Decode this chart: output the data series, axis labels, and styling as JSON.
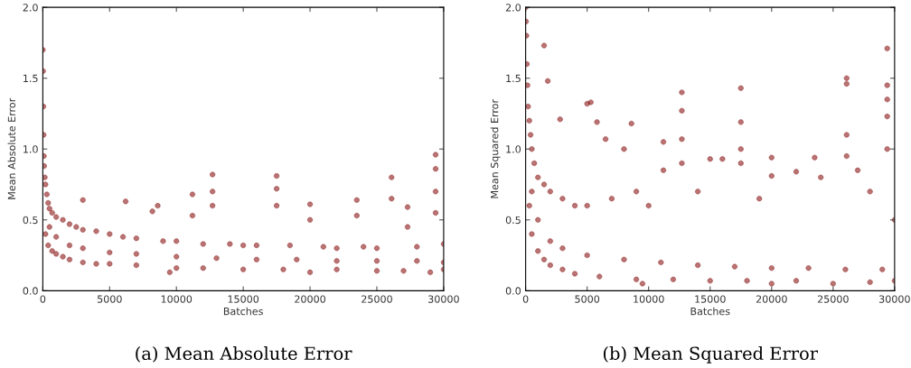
{
  "chart_data": [
    {
      "type": "scatter",
      "title": "(a) Mean Absolute Error",
      "xlabel": "Batches",
      "ylabel": "Mean Absolute Error",
      "xlim": [
        0,
        30000
      ],
      "ylim": [
        0,
        2.0
      ],
      "xticks": [
        0,
        5000,
        10000,
        15000,
        20000,
        25000,
        30000
      ],
      "yticks": [
        {
          "value": 0,
          "label": "0.0"
        },
        {
          "value": 0.5,
          "label": "0.5"
        },
        {
          "value": 1,
          "label": "1.0"
        },
        {
          "value": 1.5,
          "label": "1.5"
        },
        {
          "value": 2,
          "label": "2.0"
        }
      ],
      "marker": "circle",
      "grid": false,
      "legend": false,
      "series": [
        {
          "color": "#800000",
          "x": [
            0,
            20,
            40,
            60,
            80,
            100,
            150,
            200,
            300,
            400,
            500,
            700,
            1000,
            1500,
            2000,
            2500,
            3000,
            3000,
            4000,
            5000,
            6200,
            6000,
            7000,
            8200,
            8600,
            9000,
            10000,
            11200,
            11200,
            12000,
            12700,
            12700,
            12700,
            14000,
            15000,
            16000,
            17500,
            17500,
            17500,
            18500,
            20000,
            20000,
            21000,
            22000,
            23500,
            23500,
            24000,
            25000,
            26100,
            26100,
            27300,
            27300,
            28000,
            29400,
            29400,
            29400,
            29400,
            30000,
            200,
            400,
            700,
            1000,
            1500,
            2000,
            3000,
            4000,
            5000,
            7000,
            9500,
            10000,
            12000,
            15000,
            18000,
            20000,
            22000,
            25000,
            27000,
            29000,
            30000,
            500,
            1000,
            2000,
            3000,
            5000,
            7000,
            10000,
            13000,
            16000,
            19000,
            22000,
            25000,
            28000,
            30000
          ],
          "values": [
            1.7,
            1.55,
            1.3,
            1.1,
            0.95,
            0.88,
            0.8,
            0.75,
            0.68,
            0.62,
            0.58,
            0.55,
            0.52,
            0.5,
            0.47,
            0.45,
            0.64,
            0.43,
            0.42,
            0.4,
            0.63,
            0.38,
            0.37,
            0.56,
            0.6,
            0.35,
            0.35,
            0.68,
            0.53,
            0.33,
            0.82,
            0.7,
            0.6,
            0.33,
            0.32,
            0.32,
            0.81,
            0.72,
            0.6,
            0.32,
            0.61,
            0.5,
            0.31,
            0.3,
            0.64,
            0.53,
            0.31,
            0.3,
            0.8,
            0.65,
            0.59,
            0.45,
            0.31,
            0.96,
            0.86,
            0.7,
            0.55,
            0.33,
            0.4,
            0.32,
            0.28,
            0.26,
            0.24,
            0.22,
            0.2,
            0.19,
            0.19,
            0.18,
            0.13,
            0.16,
            0.16,
            0.15,
            0.15,
            0.13,
            0.15,
            0.14,
            0.14,
            0.13,
            0.15,
            0.45,
            0.38,
            0.32,
            0.3,
            0.27,
            0.26,
            0.24,
            0.23,
            0.22,
            0.22,
            0.21,
            0.21,
            0.21,
            0.2
          ]
        }
      ]
    },
    {
      "type": "scatter",
      "title": "(b) Mean Squared Error",
      "xlabel": "Batches",
      "ylabel": "Mean Squared Error",
      "xlim": [
        0,
        30000
      ],
      "ylim": [
        0,
        2.0
      ],
      "xticks": [
        0,
        5000,
        10000,
        15000,
        20000,
        25000,
        30000
      ],
      "yticks": [
        {
          "value": 0,
          "label": "0.0"
        },
        {
          "value": 0.5,
          "label": "0.5"
        },
        {
          "value": 1,
          "label": "1.0"
        },
        {
          "value": 1.5,
          "label": "1.5"
        },
        {
          "value": 2,
          "label": "2.0"
        }
      ],
      "marker": "circle",
      "grid": false,
      "legend": false,
      "series": [
        {
          "color": "#800000",
          "x": [
            0,
            30,
            60,
            100,
            150,
            200,
            300,
            400,
            500,
            700,
            1000,
            1500,
            1800,
            1500,
            2000,
            2800,
            3000,
            4000,
            5000,
            5300,
            5800,
            5000,
            6500,
            7000,
            8000,
            8600,
            9000,
            10000,
            11200,
            11200,
            12700,
            12700,
            12700,
            12700,
            14000,
            15000,
            16000,
            17500,
            17500,
            17500,
            17500,
            19000,
            20000,
            20000,
            22000,
            23500,
            24000,
            26100,
            26100,
            26100,
            26100,
            27000,
            28000,
            29400,
            29400,
            29400,
            29400,
            29400,
            30000,
            300,
            500,
            1000,
            1500,
            2000,
            3000,
            4000,
            6000,
            9000,
            9500,
            12000,
            15000,
            18000,
            20000,
            22000,
            25000,
            28000,
            30000,
            500,
            1000,
            2000,
            3000,
            5000,
            8000,
            11000,
            14000,
            17000,
            20000,
            23000,
            26000,
            29000
          ],
          "values": [
            2.0,
            1.9,
            1.8,
            1.6,
            1.45,
            1.3,
            1.2,
            1.1,
            1.0,
            0.9,
            0.8,
            1.73,
            1.48,
            0.75,
            0.7,
            1.21,
            0.65,
            0.6,
            1.32,
            1.33,
            1.19,
            0.6,
            1.07,
            0.65,
            1.0,
            1.18,
            0.7,
            0.6,
            1.05,
            0.85,
            1.4,
            1.27,
            1.07,
            0.9,
            0.7,
            0.93,
            0.93,
            1.43,
            1.19,
            1.0,
            0.9,
            0.65,
            0.94,
            0.81,
            0.84,
            0.94,
            0.8,
            1.5,
            1.46,
            1.1,
            0.95,
            0.85,
            0.7,
            1.71,
            1.45,
            1.35,
            1.23,
            1.0,
            0.5,
            0.6,
            0.4,
            0.28,
            0.22,
            0.18,
            0.15,
            0.12,
            0.1,
            0.08,
            0.05,
            0.08,
            0.07,
            0.07,
            0.05,
            0.07,
            0.05,
            0.06,
            0.07,
            0.7,
            0.5,
            0.35,
            0.3,
            0.25,
            0.22,
            0.2,
            0.18,
            0.17,
            0.16,
            0.16,
            0.15,
            0.15
          ]
        }
      ]
    }
  ]
}
